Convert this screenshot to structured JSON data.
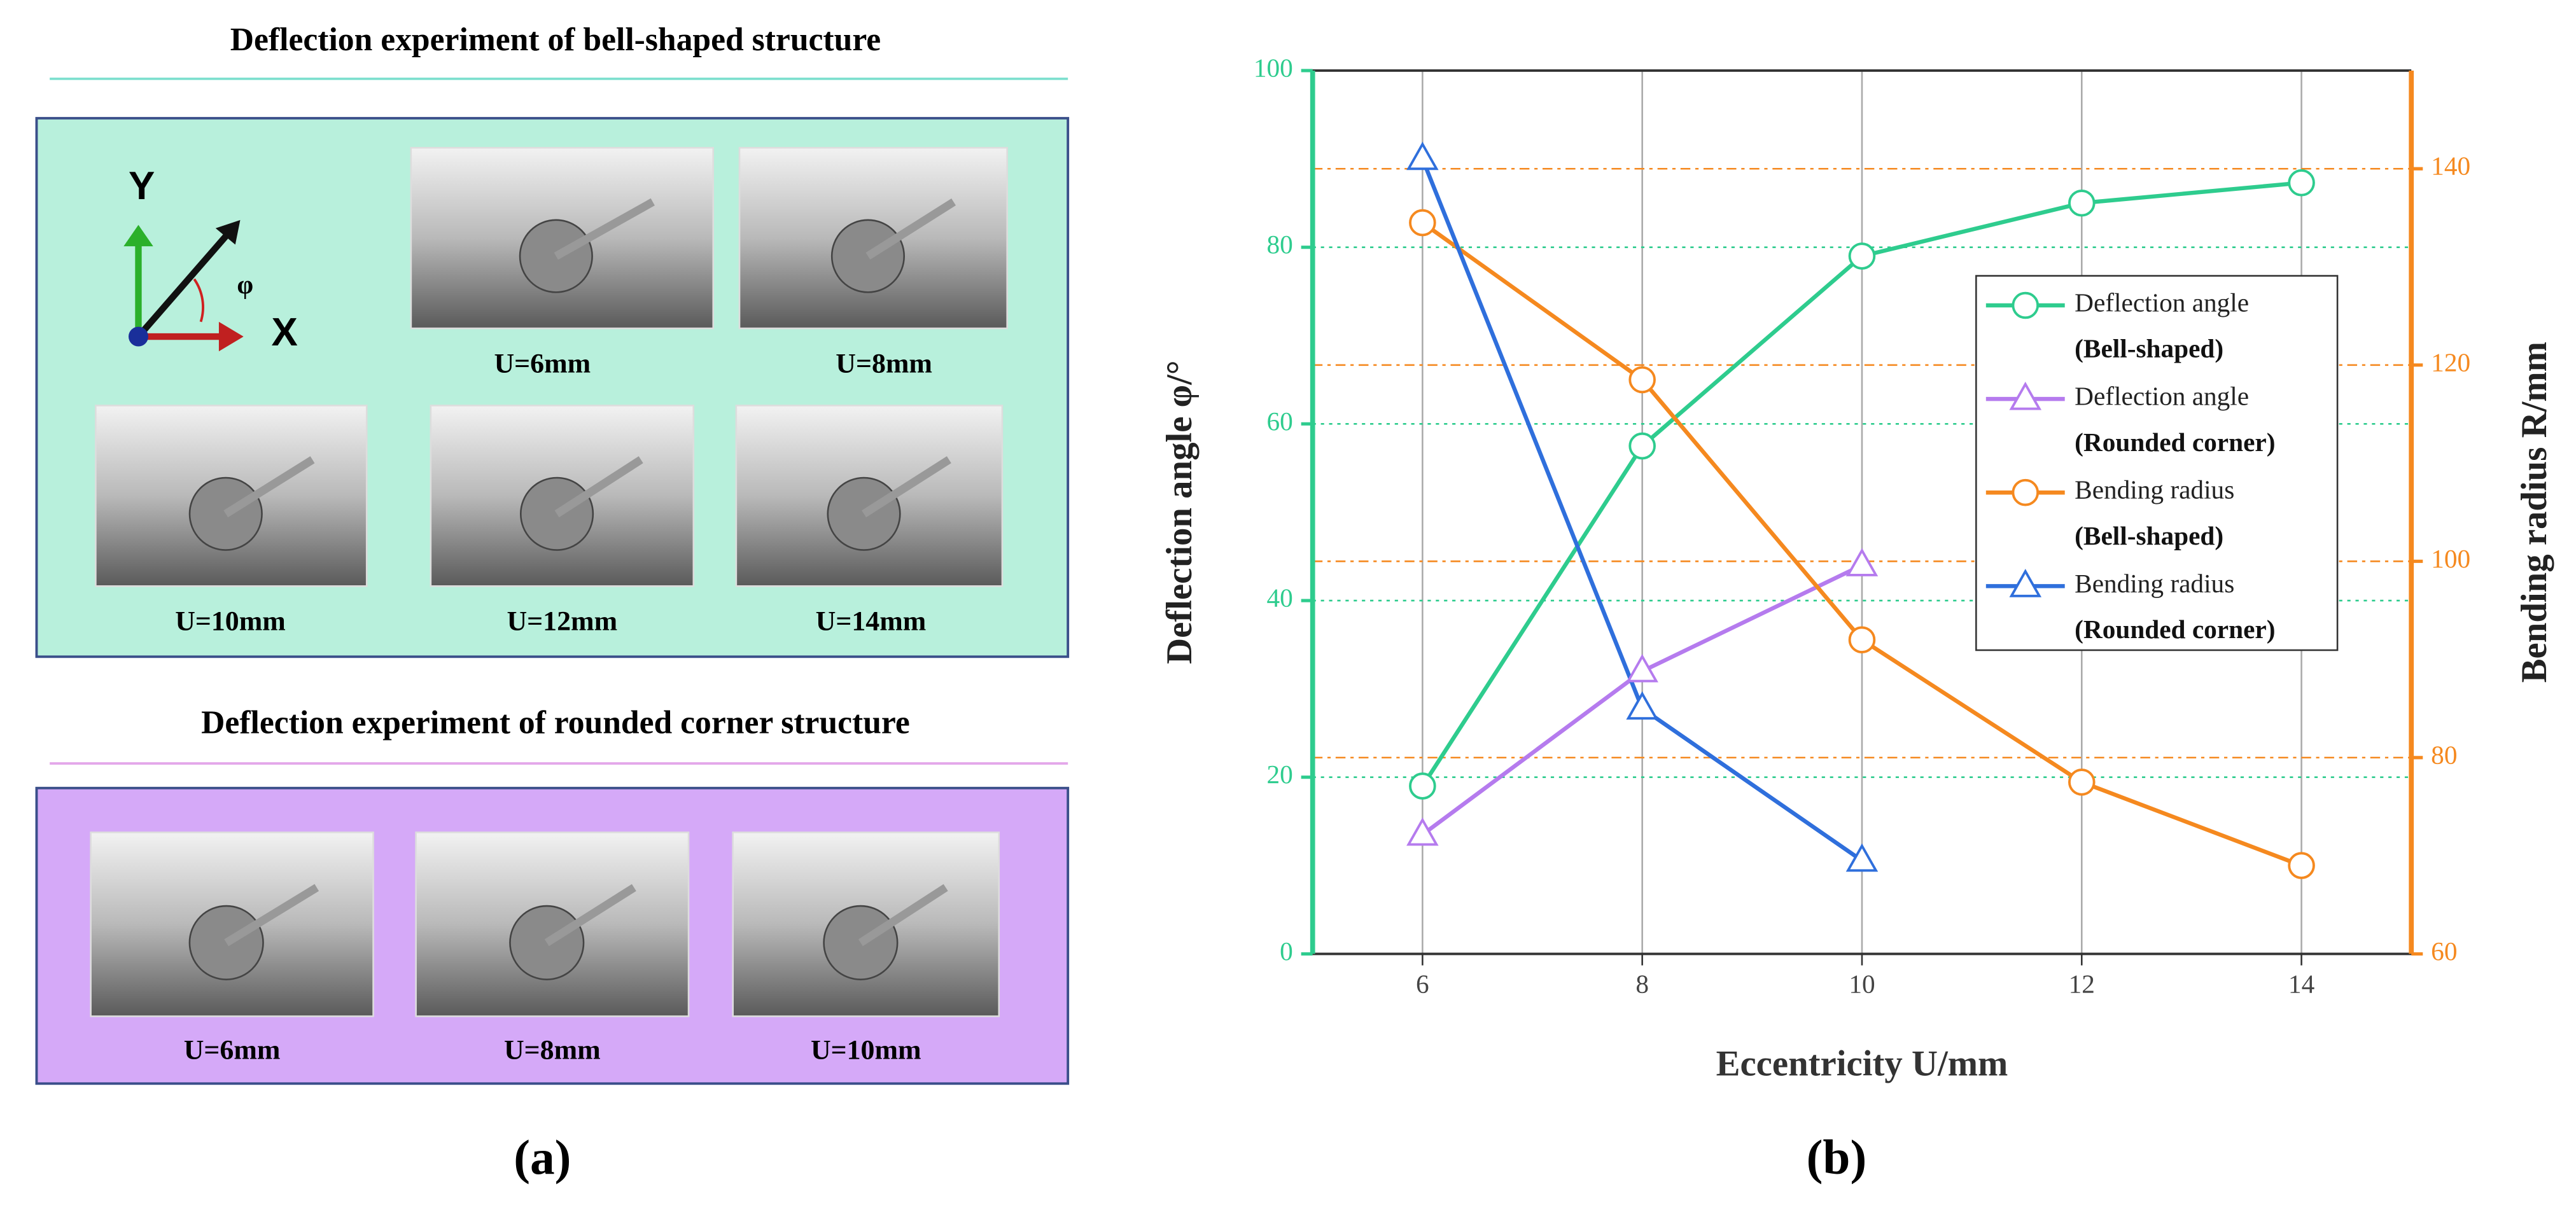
{
  "panel_a": {
    "sections": [
      {
        "title": "Deflection experiment of bell-shaped structure",
        "photos": [
          "U=6mm",
          "U=8mm",
          "U=10mm",
          "U=12mm",
          "U=14mm"
        ]
      },
      {
        "title": "Deflection experiment of rounded corner structure",
        "photos": [
          "U=6mm",
          "U=8mm",
          "U=10mm"
        ]
      }
    ],
    "axes_icon": {
      "y": "Y",
      "x": "X",
      "angle": "φ"
    }
  },
  "panel_labels": [
    "(a)",
    "(b)"
  ],
  "chart_data": {
    "type": "line",
    "x_label": "Eccentricity U/mm",
    "y_label": "Deflection angle φ/°",
    "y2_label": "Bending radius R/mm",
    "x": [
      6,
      8,
      10,
      12,
      14
    ],
    "xlim": [
      5,
      15
    ],
    "xticks": [
      6,
      8,
      10,
      12,
      14
    ],
    "ylim": [
      0,
      100
    ],
    "yticks": [
      0,
      20,
      40,
      60,
      80,
      100
    ],
    "y2lim": [
      60,
      150
    ],
    "y2ticks": [
      60,
      80,
      100,
      120,
      140
    ],
    "grid": true,
    "legend": "upper right",
    "series": [
      {
        "name": "Deflection angle",
        "subname": "(Bell-shaped)",
        "color": "#2ecc8e",
        "marker": "circle",
        "values": [
          19,
          57.5,
          79,
          85,
          87.3
        ]
      },
      {
        "name": "Deflection angle",
        "subname": "(Rounded corner)",
        "color": "#b57bee",
        "marker": "triangle",
        "values": [
          13.5,
          32,
          44,
          null,
          null
        ]
      },
      {
        "name": "Bending radius",
        "subname": "(Bell-shaped)",
        "color": "#f5891f",
        "marker": "circle",
        "axis": "y2",
        "values": [
          134.5,
          118.5,
          92,
          77.5,
          69
        ]
      },
      {
        "name": "Bending radius",
        "subname": "(Rounded corner)",
        "color": "#2f6fdc",
        "marker": "triangle",
        "axis": "y2",
        "values": [
          141,
          85,
          69.5,
          null,
          null
        ]
      }
    ]
  }
}
